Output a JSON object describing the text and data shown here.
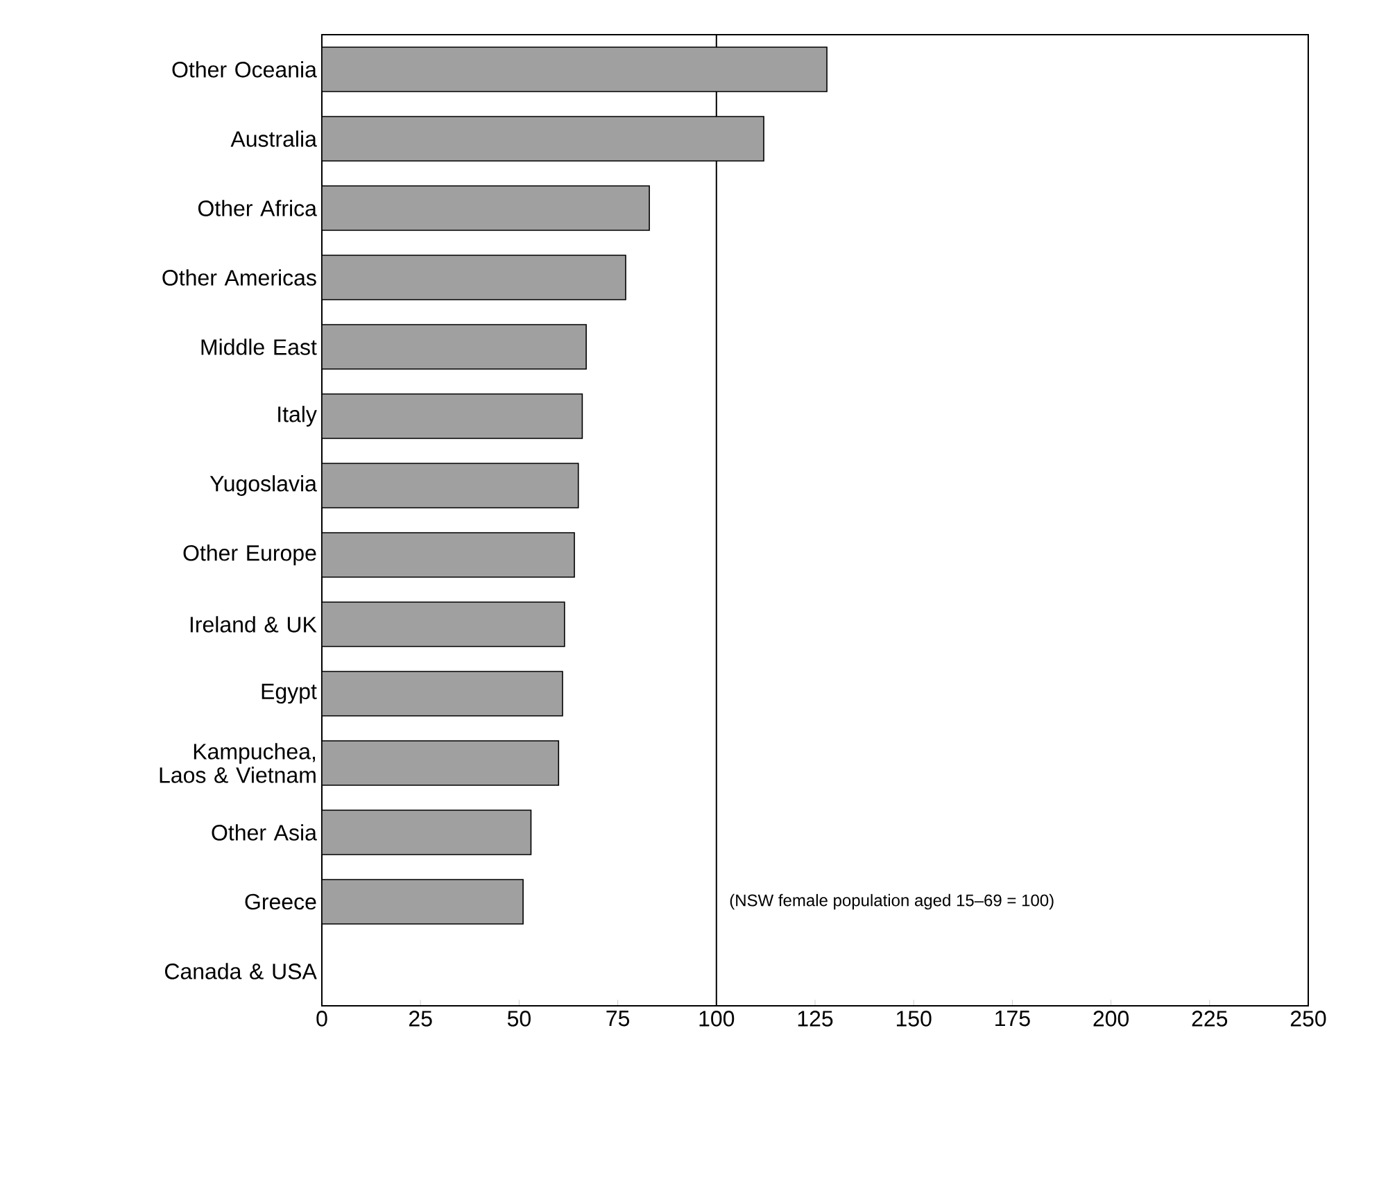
{
  "chart_data": {
    "type": "bar",
    "orientation": "horizontal",
    "categories": [
      "Other Oceania",
      "Australia",
      "Other Africa",
      "Other Americas",
      "Middle East",
      "Italy",
      "Yugoslavia",
      "Other Europe",
      "Ireland & UK",
      "Egypt",
      "Kampuchea, Laos & Vietnam",
      "Other Asia",
      "Greece",
      "Canada & USA"
    ],
    "values": [
      128,
      112,
      83,
      77,
      67,
      66,
      65,
      64,
      61.5,
      61,
      60,
      53,
      51,
      null
    ],
    "color": "#a0a0a0",
    "xlim": [
      0,
      250
    ],
    "xticks": [
      0,
      25,
      50,
      75,
      100,
      125,
      150,
      175,
      200,
      225,
      250
    ],
    "ref_lines": [
      {
        "axis": "x",
        "value": 100
      }
    ],
    "annotations": [
      "(NSW female population aged 15–69 = 100)"
    ],
    "grid": false
  }
}
